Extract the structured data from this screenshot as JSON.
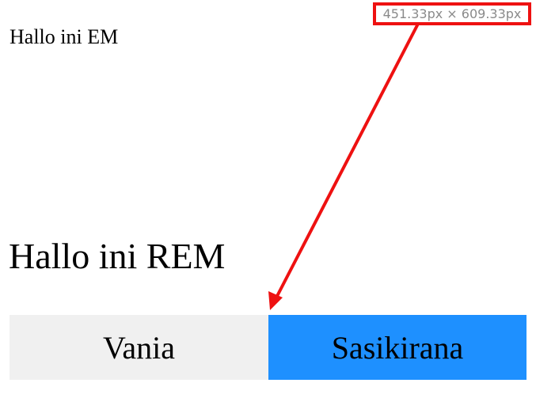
{
  "em_heading": "Hallo ini EM",
  "rem_heading": "Hallo ini REM",
  "measure_tooltip": "451.33px × 609.33px",
  "buttons": {
    "left_label": "Vania",
    "right_label": "Sasikirana"
  },
  "colors": {
    "tooltip_border": "#ee1111",
    "arrow": "#ee1111",
    "left_button_bg": "#f0f0f0",
    "right_button_bg": "#1e90ff"
  }
}
